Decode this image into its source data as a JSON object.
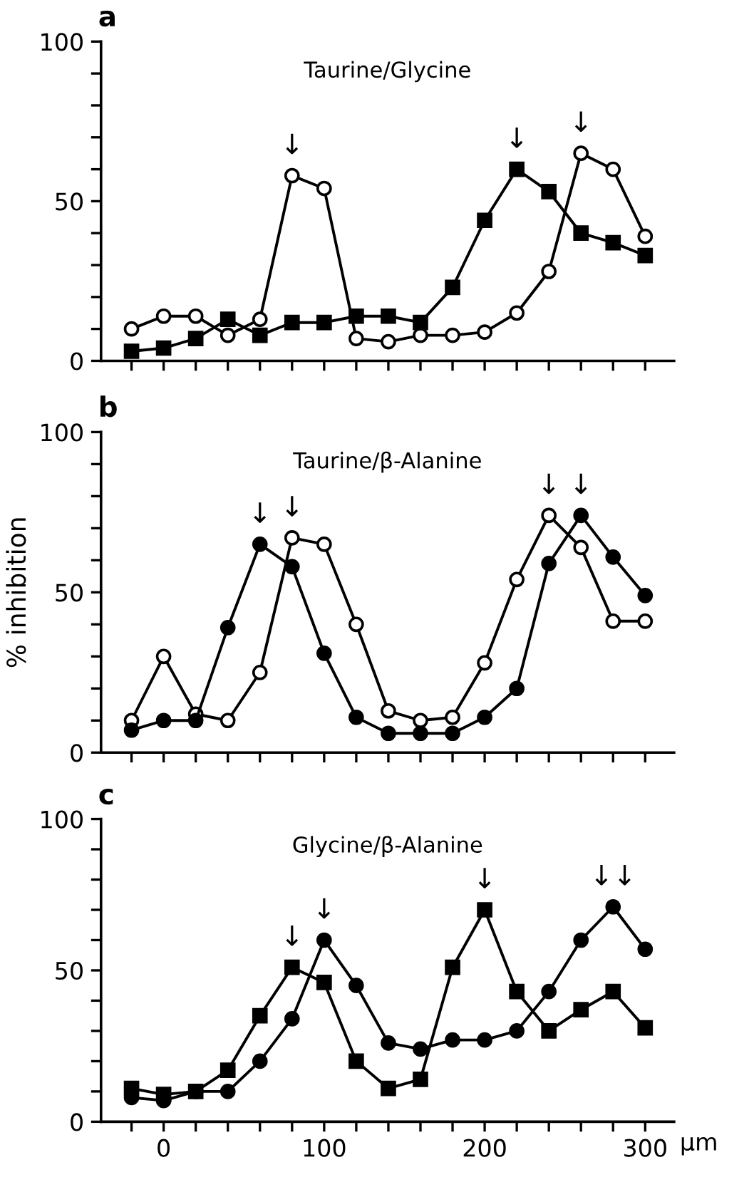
{
  "chart_data": [
    {
      "type": "line",
      "title": "Taurine/Glycine",
      "annotations": [
        "a",
        {
          "text": "↓",
          "x": 80,
          "y": 58
        },
        {
          "text": "↓",
          "x": 220,
          "y": 60
        },
        {
          "text": "↓",
          "x": 260,
          "y": 65
        }
      ],
      "x": [
        -20,
        0,
        20,
        40,
        60,
        80,
        100,
        120,
        140,
        160,
        180,
        200,
        220,
        240,
        260,
        280,
        300
      ],
      "series": [
        {
          "color": "#000000",
          "marker": "circle",
          "values": [
            10,
            14,
            14,
            8,
            13,
            58,
            54,
            7,
            6,
            8,
            8,
            9,
            15,
            28,
            65,
            60,
            39
          ]
        },
        {
          "color": "#000000",
          "marker": "square",
          "values": [
            3,
            4,
            7,
            13,
            8,
            12,
            12,
            14,
            14,
            12,
            23,
            44,
            60,
            53,
            40,
            37,
            33
          ]
        }
      ],
      "xlim": [
        -39,
        318
      ],
      "ylim": [
        0,
        100
      ],
      "xticks": [
        {
          "value": -20,
          "label": null
        },
        {
          "value": 0,
          "label": null
        },
        {
          "value": 20,
          "label": null
        },
        {
          "value": 40,
          "label": null
        },
        {
          "value": 60,
          "label": null
        },
        {
          "value": 80,
          "label": null
        },
        {
          "value": 100,
          "label": null
        },
        {
          "value": 120,
          "label": null
        },
        {
          "value": 140,
          "label": null
        },
        {
          "value": 160,
          "label": null
        },
        {
          "value": 180,
          "label": null
        },
        {
          "value": 200,
          "label": null
        },
        {
          "value": 220,
          "label": null
        },
        {
          "value": 240,
          "label": null
        },
        {
          "value": 260,
          "label": null
        },
        {
          "value": 280,
          "label": null
        },
        {
          "value": 300,
          "label": null
        }
      ],
      "yticks": [
        0,
        {
          "value": 10,
          "label": null
        },
        {
          "value": 20,
          "label": null
        },
        {
          "value": 30,
          "label": null
        },
        {
          "value": 40,
          "label": null
        },
        50,
        {
          "value": 60,
          "label": null
        },
        {
          "value": 70,
          "label": null
        },
        {
          "value": 80,
          "label": null
        },
        {
          "value": 90,
          "label": null
        },
        100
      ],
      "tick_labels": "y",
      "grid": false,
      "legend": false,
      "line_style": "solid"
    },
    {
      "type": "line",
      "title": "Taurine/β-Alanine",
      "ylabel": "% inhibition",
      "annotations": [
        "b",
        {
          "text": "↓",
          "x": 60,
          "y": 65
        },
        {
          "text": "↓",
          "x": 80,
          "y": 67
        },
        {
          "text": "↓",
          "x": 240,
          "y": 74
        },
        {
          "text": "↓",
          "x": 260,
          "y": 74
        }
      ],
      "x": [
        -20,
        0,
        20,
        40,
        60,
        80,
        100,
        120,
        140,
        160,
        180,
        200,
        220,
        240,
        260,
        280,
        300
      ],
      "series": [
        {
          "color": "#000000",
          "marker": "circle",
          "values": [
            10,
            30,
            12,
            10,
            25,
            67,
            65,
            40,
            13,
            10,
            11,
            28,
            54,
            74,
            64,
            41,
            41
          ]
        },
        {
          "color": "#000000",
          "marker": "circle",
          "values": [
            7,
            10,
            10,
            39,
            65,
            58,
            31,
            11,
            6,
            6,
            6,
            11,
            20,
            59,
            74,
            61,
            49
          ]
        }
      ],
      "xlim": [
        -39,
        318
      ],
      "ylim": [
        0,
        100
      ],
      "xticks": [
        {
          "value": -20,
          "label": null
        },
        {
          "value": 0,
          "label": null
        },
        {
          "value": 20,
          "label": null
        },
        {
          "value": 40,
          "label": null
        },
        {
          "value": 60,
          "label": null
        },
        {
          "value": 80,
          "label": null
        },
        {
          "value": 100,
          "label": null
        },
        {
          "value": 120,
          "label": null
        },
        {
          "value": 140,
          "label": null
        },
        {
          "value": 160,
          "label": null
        },
        {
          "value": 180,
          "label": null
        },
        {
          "value": 200,
          "label": null
        },
        {
          "value": 220,
          "label": null
        },
        {
          "value": 240,
          "label": null
        },
        {
          "value": 260,
          "label": null
        },
        {
          "value": 280,
          "label": null
        },
        {
          "value": 300,
          "label": null
        }
      ],
      "yticks": [
        0,
        {
          "value": 10,
          "label": null
        },
        {
          "value": 20,
          "label": null
        },
        {
          "value": 30,
          "label": null
        },
        {
          "value": 40,
          "label": null
        },
        50,
        {
          "value": 60,
          "label": null
        },
        {
          "value": 70,
          "label": null
        },
        {
          "value": 80,
          "label": null
        },
        {
          "value": 90,
          "label": null
        },
        100
      ],
      "tick_labels": "y",
      "grid": false,
      "legend": false,
      "line_style": "solid"
    },
    {
      "type": "line",
      "title": "Glycine/β-Alanine",
      "xlabel": "μm",
      "annotations": [
        "c",
        {
          "text": "↓",
          "x": 80,
          "y": 51
        },
        {
          "text": "↓",
          "x": 100,
          "y": 60
        },
        {
          "text": "↓",
          "x": 200,
          "y": 70
        },
        {
          "text": "↓↓",
          "x": 280,
          "y": 71
        }
      ],
      "x": [
        -20,
        0,
        20,
        40,
        60,
        80,
        100,
        120,
        140,
        160,
        180,
        200,
        220,
        240,
        260,
        280,
        300
      ],
      "series": [
        {
          "color": "#000000",
          "marker": "circle",
          "values": [
            8,
            7,
            10,
            10,
            20,
            34,
            60,
            45,
            26,
            24,
            27,
            27,
            30,
            43,
            60,
            71,
            57
          ]
        },
        {
          "color": "#000000",
          "marker": "square",
          "values": [
            11,
            9,
            10,
            17,
            35,
            51,
            46,
            20,
            11,
            14,
            51,
            70,
            43,
            30,
            37,
            43,
            31
          ]
        }
      ],
      "xlim": [
        -39,
        318
      ],
      "ylim": [
        0,
        100
      ],
      "xticks": [
        {
          "value": -20,
          "label": null
        },
        0,
        {
          "value": 20,
          "label": null
        },
        {
          "value": 40,
          "label": null
        },
        {
          "value": 60,
          "label": null
        },
        {
          "value": 80,
          "label": null
        },
        100,
        {
          "value": 120,
          "label": null
        },
        {
          "value": 140,
          "label": null
        },
        {
          "value": 160,
          "label": null
        },
        {
          "value": 180,
          "label": null
        },
        200,
        {
          "value": 220,
          "label": null
        },
        {
          "value": 240,
          "label": null
        },
        {
          "value": 260,
          "label": null
        },
        {
          "value": 280,
          "label": null
        },
        300
      ],
      "yticks": [
        0,
        {
          "value": 10,
          "label": null
        },
        {
          "value": 20,
          "label": null
        },
        {
          "value": 30,
          "label": null
        },
        {
          "value": 40,
          "label": null
        },
        50,
        {
          "value": 60,
          "label": null
        },
        {
          "value": 70,
          "label": null
        },
        {
          "value": 80,
          "label": null
        },
        {
          "value": 90,
          "label": null
        },
        100
      ],
      "grid": false,
      "legend": false,
      "line_style": "solid"
    }
  ]
}
